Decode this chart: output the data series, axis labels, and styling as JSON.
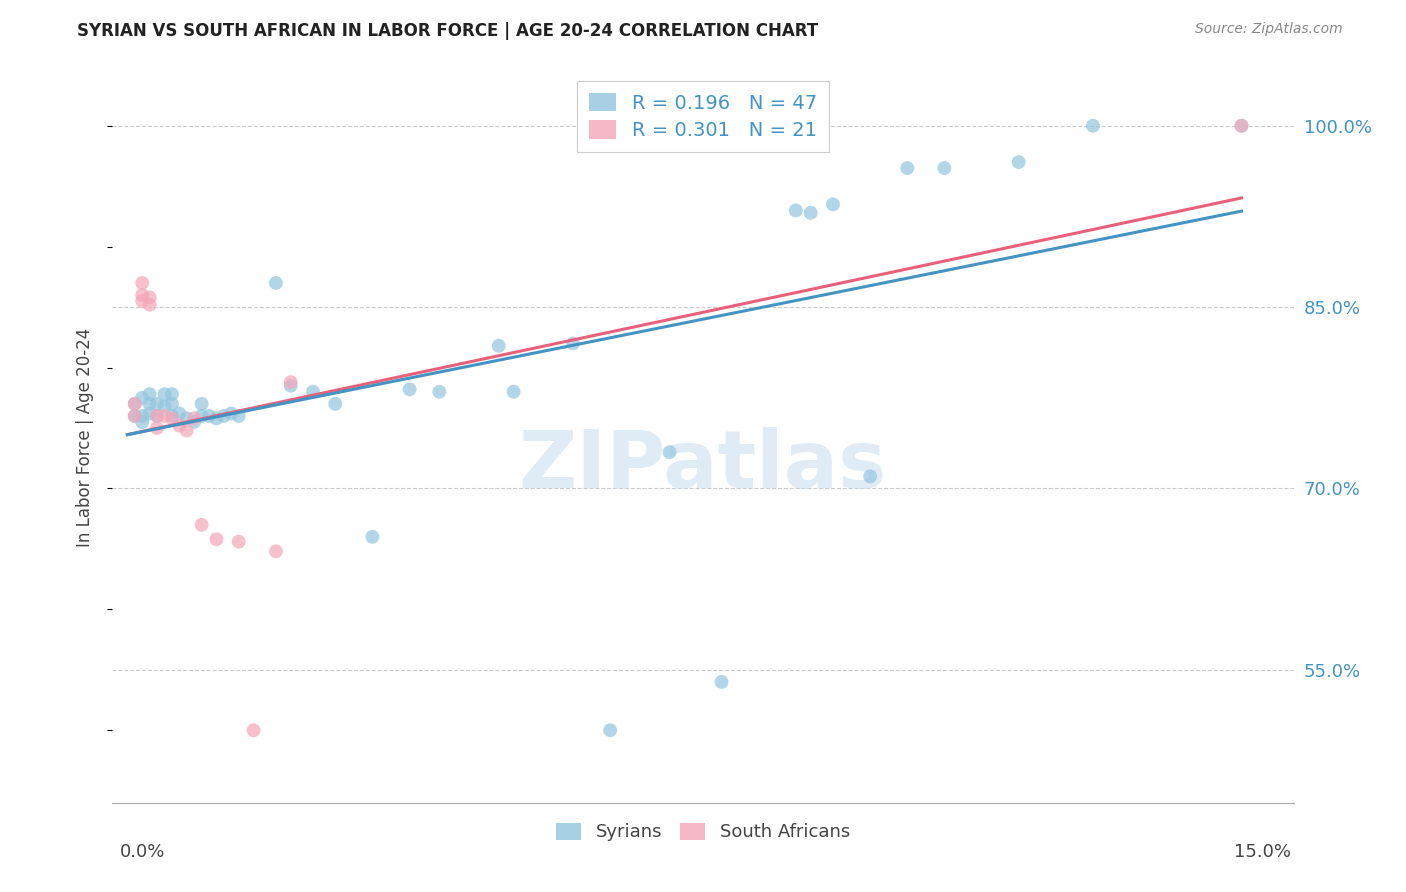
{
  "title": "SYRIAN VS SOUTH AFRICAN IN LABOR FORCE | AGE 20-24 CORRELATION CHART",
  "source": "Source: ZipAtlas.com",
  "ylabel": "In Labor Force | Age 20-24",
  "ytick_labels": [
    "100.0%",
    "85.0%",
    "70.0%",
    "55.0%"
  ],
  "ytick_values": [
    1.0,
    0.85,
    0.7,
    0.55
  ],
  "xlim": [
    0.0,
    0.15
  ],
  "ylim": [
    0.44,
    1.04
  ],
  "watermark": "ZIPatlas",
  "legend_blue_r": "0.196",
  "legend_blue_n": "47",
  "legend_pink_r": "0.301",
  "legend_pink_n": "21",
  "blue_color": "#92c5de",
  "pink_color": "#f4a6b8",
  "line_blue": "#4393c3",
  "line_pink": "#e8607a",
  "syrians_x": [
    0.001,
    0.001,
    0.002,
    0.002,
    0.002,
    0.003,
    0.003,
    0.003,
    0.004,
    0.004,
    0.005,
    0.005,
    0.006,
    0.006,
    0.006,
    0.007,
    0.008,
    0.009,
    0.01,
    0.01,
    0.011,
    0.012,
    0.013,
    0.014,
    0.015,
    0.02,
    0.022,
    0.025,
    0.028,
    0.033,
    0.038,
    0.042,
    0.05,
    0.052,
    0.06,
    0.065,
    0.073,
    0.08,
    0.09,
    0.092,
    0.095,
    0.1,
    0.105,
    0.11,
    0.12,
    0.13,
    0.15
  ],
  "syrians_y": [
    0.77,
    0.76,
    0.775,
    0.76,
    0.755,
    0.778,
    0.77,
    0.762,
    0.77,
    0.76,
    0.778,
    0.768,
    0.778,
    0.77,
    0.76,
    0.762,
    0.758,
    0.755,
    0.77,
    0.76,
    0.76,
    0.758,
    0.76,
    0.762,
    0.76,
    0.87,
    0.785,
    0.78,
    0.77,
    0.66,
    0.782,
    0.78,
    0.818,
    0.78,
    0.82,
    0.5,
    0.73,
    0.54,
    0.93,
    0.928,
    0.935,
    0.71,
    0.965,
    0.965,
    0.97,
    1.0,
    1.0
  ],
  "south_africans_x": [
    0.001,
    0.001,
    0.002,
    0.002,
    0.002,
    0.003,
    0.003,
    0.004,
    0.004,
    0.005,
    0.006,
    0.007,
    0.008,
    0.009,
    0.01,
    0.012,
    0.015,
    0.017,
    0.02,
    0.022,
    0.15
  ],
  "south_africans_y": [
    0.77,
    0.76,
    0.87,
    0.86,
    0.855,
    0.858,
    0.852,
    0.76,
    0.75,
    0.76,
    0.758,
    0.752,
    0.748,
    0.758,
    0.67,
    0.658,
    0.656,
    0.5,
    0.648,
    0.788,
    1.0
  ]
}
